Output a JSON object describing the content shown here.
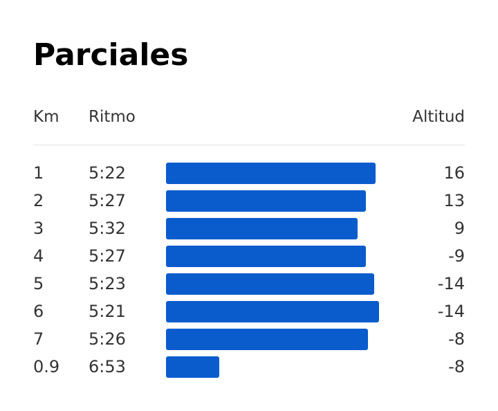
{
  "title": "Parciales",
  "columns": {
    "km": "Km",
    "pace": "Ritmo",
    "altitude": "Altitud"
  },
  "colors": {
    "bar": "#0a5ccc"
  },
  "splits": [
    {
      "km": "1",
      "pace": "5:22",
      "altitude": "16"
    },
    {
      "km": "2",
      "pace": "5:27",
      "altitude": "13"
    },
    {
      "km": "3",
      "pace": "5:32",
      "altitude": "9"
    },
    {
      "km": "4",
      "pace": "5:27",
      "altitude": "-9"
    },
    {
      "km": "5",
      "pace": "5:23",
      "altitude": "-14"
    },
    {
      "km": "6",
      "pace": "5:21",
      "altitude": "-14"
    },
    {
      "km": "7",
      "pace": "5:26",
      "altitude": "-8"
    },
    {
      "km": "0.9",
      "pace": "6:53",
      "altitude": "-8"
    }
  ],
  "bar_fraction": [
    0.985,
    0.937,
    0.898,
    0.937,
    0.976,
    1.0,
    0.947,
    0.25
  ]
}
